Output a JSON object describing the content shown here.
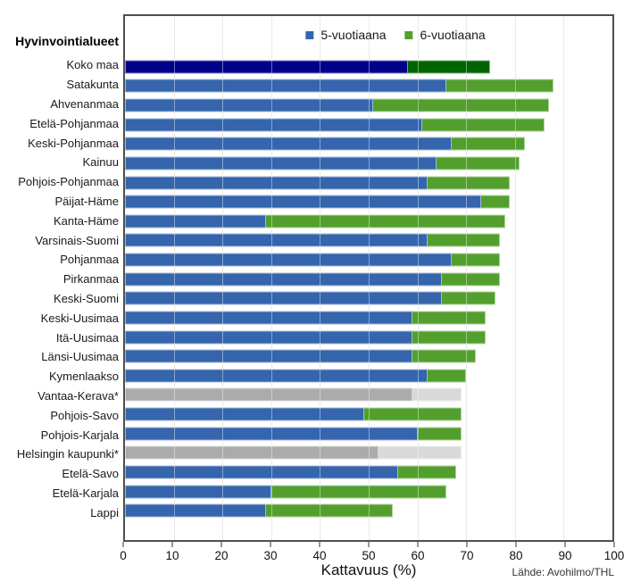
{
  "header": {
    "region_axis_title": "Hyvinvointialueet"
  },
  "legend": [
    {
      "label": "5-vuotiaana",
      "color": "#3465AD"
    },
    {
      "label": "6-vuotiaana",
      "color": "#539F2D"
    }
  ],
  "footer": {
    "source": "Lähde: Avohilmo/THL"
  },
  "palette": {
    "national": [
      "#00008B",
      "#006400"
    ],
    "default": [
      "#3465AD",
      "#539F2D"
    ],
    "gray": [
      "#ABABAB",
      "#D9D9D9"
    ]
  },
  "chart_data": {
    "type": "bar",
    "orientation": "horizontal",
    "stacked": true,
    "title": "",
    "xlabel": "Kattavuus (%)",
    "ylabel": "Hyvinvointialueet",
    "xlim": [
      0,
      100
    ],
    "x_ticks": [
      0,
      10,
      20,
      30,
      40,
      50,
      60,
      70,
      80,
      90,
      100
    ],
    "grid": true,
    "legend_position": "top-inside",
    "categories": [
      "Koko maa",
      "Satakunta",
      "Ahvenanmaa",
      "Etelä-Pohjanmaa",
      "Keski-Pohjanmaa",
      "Kainuu",
      "Pohjois-Pohjanmaa",
      "Päijat-Häme",
      "Kanta-Häme",
      "Varsinais-Suomi",
      "Pohjanmaa",
      "Pirkanmaa",
      "Keski-Suomi",
      "Keski-Uusimaa",
      "Itä-Uusimaa",
      "Länsi-Uusimaa",
      "Kymenlaakso",
      "Vantaa-Kerava*",
      "Pohjois-Savo",
      "Pohjois-Karjala",
      "Helsingin kaupunki*",
      "Etelä-Savo",
      "Etelä-Karjala",
      "Lappi"
    ],
    "series": [
      {
        "name": "5-vuotiaana",
        "values": [
          58,
          66,
          51,
          61,
          67,
          64,
          62,
          73,
          29,
          62,
          67,
          65,
          65,
          59,
          59,
          59,
          62,
          59,
          49,
          60,
          52,
          56,
          30,
          29
        ]
      },
      {
        "name": "6-vuotiaana",
        "values": [
          17,
          22,
          36,
          25,
          15,
          17,
          17,
          6,
          49,
          15,
          10,
          12,
          11,
          15,
          15,
          13,
          8,
          10,
          20,
          9,
          17,
          12,
          36,
          26
        ]
      }
    ],
    "row_styles": [
      "national",
      "default",
      "default",
      "default",
      "default",
      "default",
      "default",
      "default",
      "default",
      "default",
      "default",
      "default",
      "default",
      "default",
      "default",
      "default",
      "default",
      "gray",
      "default",
      "default",
      "gray",
      "default",
      "default",
      "default"
    ]
  }
}
